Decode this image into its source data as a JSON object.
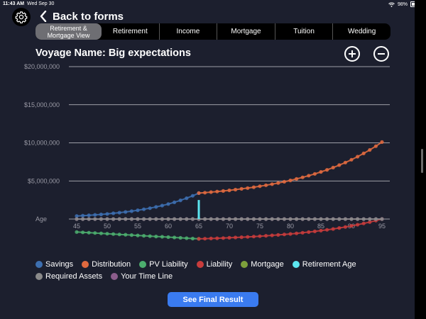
{
  "status_bar": {
    "time": "11:43 AM",
    "date": "Wed Sep 30",
    "battery": "98%",
    "battery_level": 0.98
  },
  "header": {
    "back_label": "Back to forms",
    "settings_icon": "gear-icon",
    "back_icon": "chevron-left-icon"
  },
  "tabs": [
    {
      "label": "Retirement & Mortgage View",
      "active": true
    },
    {
      "label": "Retirement",
      "active": false
    },
    {
      "label": "Income",
      "active": false
    },
    {
      "label": "Mortgage",
      "active": false
    },
    {
      "label": "Tuition",
      "active": false
    },
    {
      "label": "Wedding",
      "active": false
    }
  ],
  "voyage_title": "Voyage Name: Big expectations",
  "zoom": {
    "in_icon": "plus-circle-icon",
    "out_icon": "minus-circle-icon"
  },
  "legend": [
    [
      {
        "label": "Savings",
        "color": "#3d6fb0"
      },
      {
        "label": "Distribution",
        "color": "#e06a3f"
      },
      {
        "label": "PV Liability",
        "color": "#4cae6e"
      },
      {
        "label": "Liability",
        "color": "#c83c3c"
      },
      {
        "label": "Mortgage",
        "color": "#7da03c"
      },
      {
        "label": "Retirement Age",
        "color": "#5ce6f0"
      }
    ],
    [
      {
        "label": "Required Assets",
        "color": "#8a8a8a"
      },
      {
        "label": "Your Time Line",
        "color": "#8c5d8c"
      }
    ]
  ],
  "final_button": "See Final Result",
  "chart_data": {
    "type": "line",
    "xlabel": "Age",
    "x_ticks": [
      45,
      50,
      55,
      60,
      65,
      70,
      75,
      80,
      85,
      90,
      95
    ],
    "y_ticks": [
      "$20,000,000",
      "$15,000,000",
      "$10,000,000",
      "$5,000,000"
    ],
    "y_tick_values": [
      20000000,
      15000000,
      10000000,
      5000000
    ],
    "xlim": [
      45,
      95
    ],
    "ylim": [
      -3000000,
      20000000
    ],
    "grid": true,
    "retirement_age": 65,
    "retirement_age_value": 2500000,
    "series": [
      {
        "name": "Savings",
        "color": "#3d6fb0",
        "x_start": 45,
        "x_end": 65,
        "start_value": 400000,
        "end_value": 3400000,
        "shape": "growth"
      },
      {
        "name": "Distribution",
        "color": "#e06a3f",
        "x_start": 65,
        "x_end": 95,
        "start_value": 3400000,
        "end_value": 10100000,
        "shape": "growth"
      },
      {
        "name": "PV Liability",
        "color": "#4cae6e",
        "x_start": 45,
        "x_end": 65,
        "start_value": -1700000,
        "end_value": -2600000,
        "shape": "linear"
      },
      {
        "name": "Liability",
        "color": "#c83c3c",
        "x_start": 65,
        "x_end": 95,
        "start_value": -2600000,
        "end_value": 0,
        "shape": "growth"
      },
      {
        "name": "Your Time Line",
        "color": "#8c5d8c",
        "x_start": 45,
        "x_end": 95,
        "start_value": 0,
        "end_value": 0,
        "shape": "linear"
      },
      {
        "name": "Required Assets",
        "color": "#8a8a8a",
        "x_start": 45,
        "x_end": 95,
        "start_value": 0,
        "end_value": 0,
        "shape": "linear"
      }
    ]
  }
}
